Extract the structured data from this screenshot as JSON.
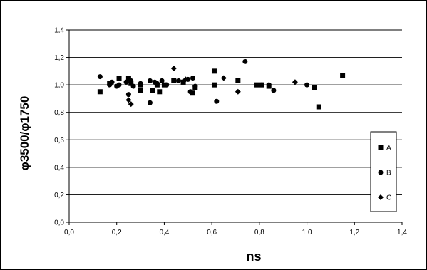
{
  "chart_data": {
    "type": "scatter",
    "title": "",
    "xlabel": "ns",
    "ylabel": "φ3500/φ1750",
    "xlim": [
      0,
      1.4
    ],
    "ylim": [
      0,
      1.4
    ],
    "x_ticks": [
      "0,0",
      "0,2",
      "0,4",
      "0,6",
      "0,8",
      "1,0",
      "1,2",
      "1,4"
    ],
    "y_ticks": [
      "0,0",
      "0,2",
      "0,4",
      "0,6",
      "0,8",
      "1,0",
      "1,2",
      "1,4"
    ],
    "x_tick_values": [
      0,
      0.2,
      0.4,
      0.6,
      0.8,
      1.0,
      1.2,
      1.4
    ],
    "y_tick_values": [
      0,
      0.2,
      0.4,
      0.6,
      0.8,
      1.0,
      1.2,
      1.4
    ],
    "grid": "horizontal",
    "legend_position": "right",
    "series": [
      {
        "name": "A",
        "marker": "square",
        "points": [
          [
            0.13,
            0.95
          ],
          [
            0.17,
            1.01
          ],
          [
            0.21,
            1.05
          ],
          [
            0.25,
            1.05
          ],
          [
            0.26,
            1.01
          ],
          [
            0.3,
            0.96
          ],
          [
            0.3,
            1.0
          ],
          [
            0.35,
            0.96
          ],
          [
            0.37,
            1.0
          ],
          [
            0.38,
            0.95
          ],
          [
            0.4,
            1.0
          ],
          [
            0.44,
            1.03
          ],
          [
            0.48,
            1.02
          ],
          [
            0.52,
            0.94
          ],
          [
            0.53,
            0.98
          ],
          [
            0.61,
            1.1
          ],
          [
            0.61,
            1.0
          ],
          [
            0.71,
            1.03
          ],
          [
            0.79,
            1.0
          ],
          [
            0.81,
            1.0
          ],
          [
            0.84,
            0.99
          ],
          [
            1.03,
            0.98
          ],
          [
            1.05,
            0.84
          ],
          [
            1.15,
            1.07
          ]
        ]
      },
      {
        "name": "B",
        "marker": "circle",
        "points": [
          [
            0.13,
            1.06
          ],
          [
            0.17,
            1.0
          ],
          [
            0.18,
            1.02
          ],
          [
            0.2,
            0.99
          ],
          [
            0.21,
            1.0
          ],
          [
            0.24,
            1.02
          ],
          [
            0.25,
            0.93
          ],
          [
            0.26,
            1.03
          ],
          [
            0.27,
            0.99
          ],
          [
            0.3,
            1.01
          ],
          [
            0.34,
            0.87
          ],
          [
            0.34,
            1.03
          ],
          [
            0.36,
            1.02
          ],
          [
            0.37,
            1.01
          ],
          [
            0.39,
            1.03
          ],
          [
            0.41,
            1.0
          ],
          [
            0.46,
            1.03
          ],
          [
            0.5,
            1.04
          ],
          [
            0.51,
            0.95
          ],
          [
            0.52,
            1.05
          ],
          [
            0.53,
            0.99
          ],
          [
            0.62,
            0.88
          ],
          [
            0.74,
            1.17
          ],
          [
            0.81,
            1.0
          ],
          [
            0.84,
            1.0
          ],
          [
            0.86,
            0.96
          ],
          [
            1.0,
            1.0
          ]
        ]
      },
      {
        "name": "C",
        "marker": "diamond",
        "points": [
          [
            0.25,
            0.89
          ],
          [
            0.26,
            0.86
          ],
          [
            0.44,
            1.12
          ],
          [
            0.49,
            1.04
          ],
          [
            0.65,
            1.05
          ],
          [
            0.71,
            0.95
          ],
          [
            0.95,
            1.02
          ]
        ]
      }
    ]
  }
}
